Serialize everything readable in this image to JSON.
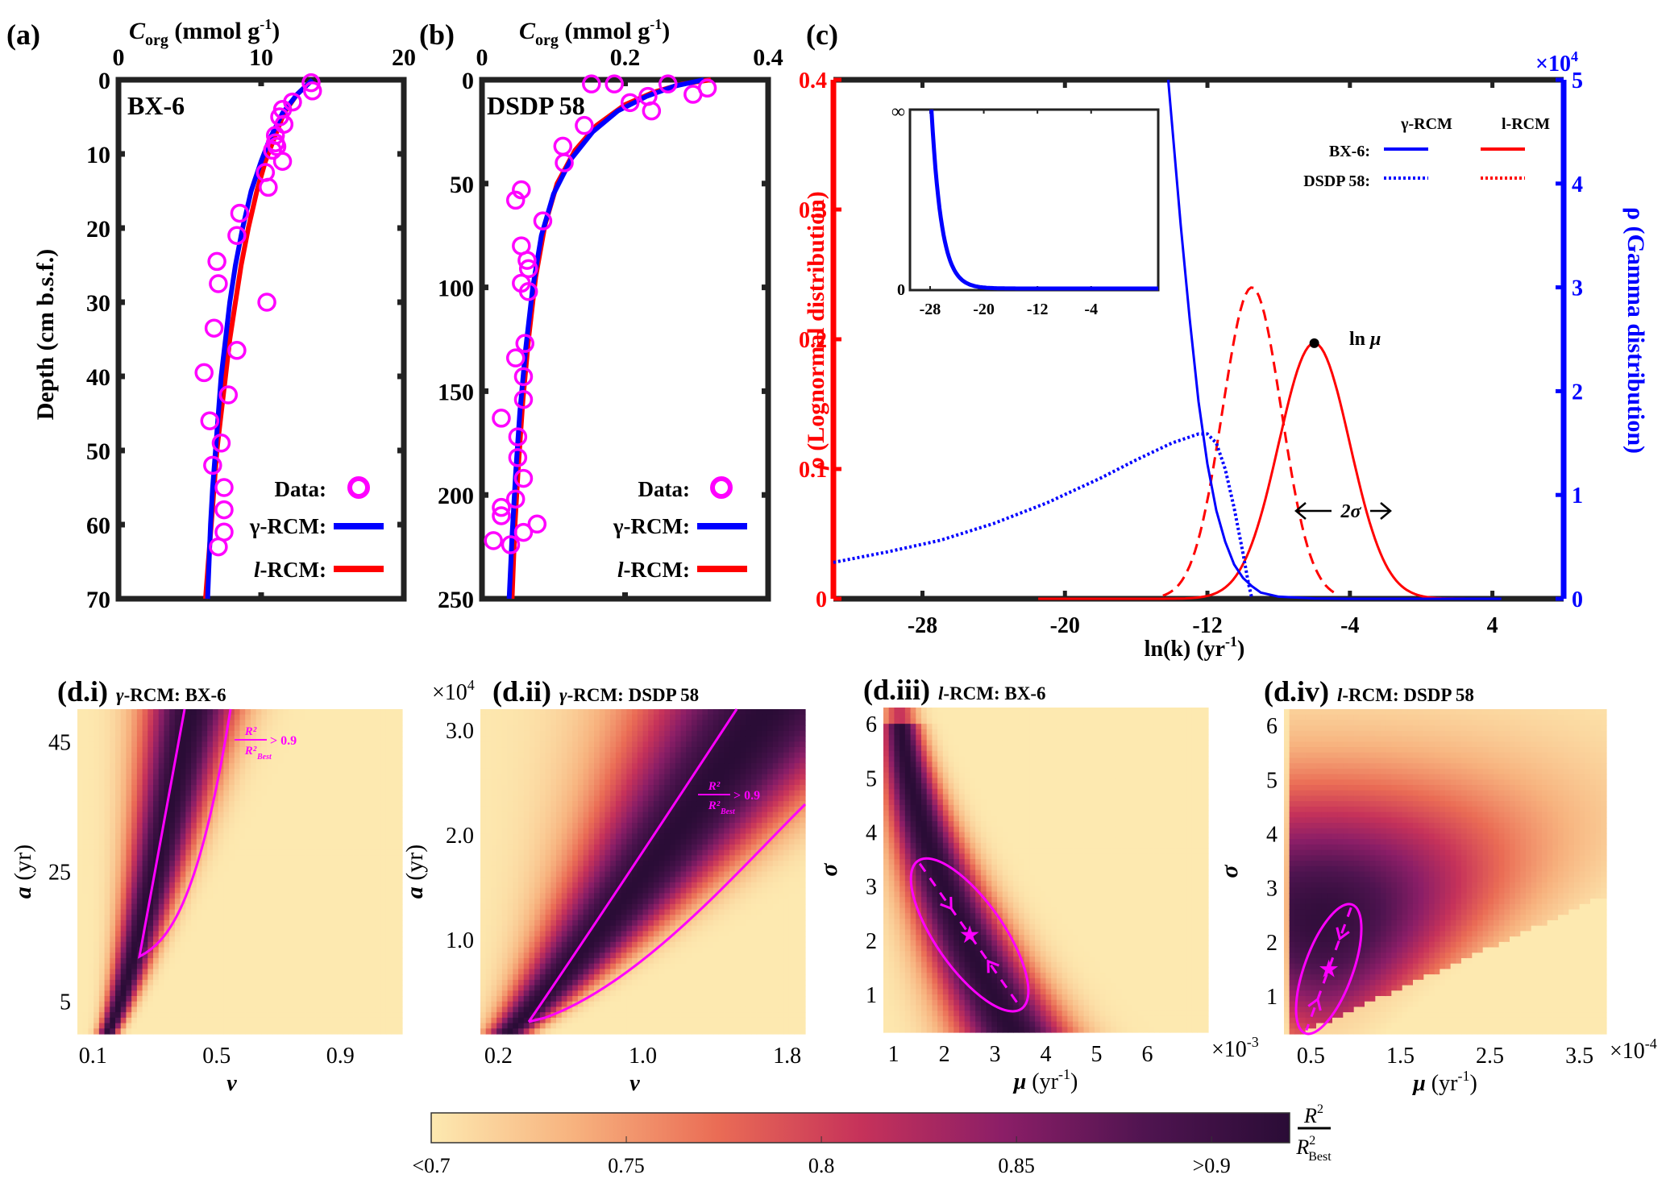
{
  "colors": {
    "data_marker": "#ff00ff",
    "gamma": "#0000ff",
    "lognormal": "#ff0000",
    "axis": "#222222",
    "contour": "#ff00ff",
    "cmap": [
      "#fde9b0",
      "#f7b27e",
      "#ea6c55",
      "#c6325a",
      "#8b1e67",
      "#4f1450",
      "#2a0c36"
    ]
  },
  "chart_data": [
    {
      "id": "a",
      "type": "scatter",
      "panel_label": "(a)",
      "title": "",
      "site_label": "BX-6",
      "xlabel_main": "C",
      "xlabel_sub": "org",
      "xlabel_rest": "  (mmol g",
      "xlabel_sup": "-1",
      "xlabel_close": ")",
      "ylabel": "Depth (cm b.s.f.)",
      "xlim": [
        0,
        20
      ],
      "ylim": [
        0,
        70
      ],
      "y_inverted": true,
      "xticks": [
        0,
        10,
        20
      ],
      "xtick_labels": [
        "0",
        "10",
        "20"
      ],
      "yticks": [
        0,
        10,
        20,
        30,
        40,
        50,
        60,
        70
      ],
      "ytick_labels": [
        "0",
        "10",
        "20",
        "30",
        "40",
        "50",
        "60",
        "70"
      ],
      "legend": {
        "data": "Data:",
        "gamma": "γ-RCM:",
        "log_prefix": "l",
        "log_rest": "-RCM:",
        "position": "bottom-right"
      },
      "data_points": [
        [
          13.5,
          0.4
        ],
        [
          13.6,
          1.5
        ],
        [
          12.2,
          3.0
        ],
        [
          11.5,
          4.0
        ],
        [
          11.3,
          5.0
        ],
        [
          11.6,
          6.0
        ],
        [
          11.0,
          7.5
        ],
        [
          11.0,
          8.5
        ],
        [
          11.1,
          9.0
        ],
        [
          10.8,
          9.5
        ],
        [
          11.5,
          11.0
        ],
        [
          10.3,
          12.5
        ],
        [
          10.5,
          14.5
        ],
        [
          8.5,
          18.0
        ],
        [
          8.3,
          21.0
        ],
        [
          6.9,
          24.5
        ],
        [
          7.0,
          27.5
        ],
        [
          10.4,
          30.0
        ],
        [
          6.7,
          33.5
        ],
        [
          8.3,
          36.5
        ],
        [
          6.0,
          39.5
        ],
        [
          7.7,
          42.5
        ],
        [
          6.4,
          46.0
        ],
        [
          7.2,
          49.0
        ],
        [
          6.6,
          52.0
        ],
        [
          7.4,
          55.0
        ],
        [
          7.4,
          58.0
        ],
        [
          7.4,
          61.0
        ],
        [
          7.0,
          63.0
        ]
      ],
      "gamma_curve": [
        [
          13.6,
          0
        ],
        [
          12.5,
          2
        ],
        [
          11.5,
          4.5
        ],
        [
          10.6,
          8
        ],
        [
          10.0,
          11
        ],
        [
          9.3,
          15
        ],
        [
          8.7,
          20
        ],
        [
          8.2,
          25
        ],
        [
          7.8,
          30
        ],
        [
          7.5,
          35
        ],
        [
          7.2,
          40
        ],
        [
          7.0,
          45
        ],
        [
          6.8,
          50
        ],
        [
          6.6,
          55
        ],
        [
          6.45,
          60
        ],
        [
          6.35,
          65
        ],
        [
          6.25,
          70
        ]
      ],
      "lognormal_curve": [
        [
          13.6,
          0
        ],
        [
          12.5,
          2
        ],
        [
          11.6,
          4.5
        ],
        [
          10.9,
          8
        ],
        [
          10.3,
          11
        ],
        [
          9.7,
          15
        ],
        [
          9.1,
          20
        ],
        [
          8.6,
          25
        ],
        [
          8.2,
          30
        ],
        [
          7.8,
          35
        ],
        [
          7.5,
          40
        ],
        [
          7.2,
          45
        ],
        [
          6.9,
          50
        ],
        [
          6.7,
          55
        ],
        [
          6.5,
          60
        ],
        [
          6.3,
          65
        ],
        [
          6.1,
          70
        ]
      ]
    },
    {
      "id": "b",
      "type": "scatter",
      "panel_label": "(b)",
      "title": "",
      "site_label": "DSDP 58",
      "xlabel_main": "C",
      "xlabel_sub": "org",
      "xlabel_rest": "  (mmol g",
      "xlabel_sup": "-1",
      "xlabel_close": ")",
      "ylabel": "",
      "xlim": [
        0,
        0.4
      ],
      "ylim": [
        0,
        250
      ],
      "y_inverted": true,
      "xticks": [
        0,
        0.2,
        0.4
      ],
      "xtick_labels": [
        "0",
        "0.2",
        "0.4"
      ],
      "yticks": [
        0,
        50,
        100,
        150,
        200,
        250
      ],
      "ytick_labels": [
        "0",
        "50",
        "100",
        "150",
        "200",
        "250"
      ],
      "legend": {
        "data": "Data:",
        "gamma": "γ-RCM:",
        "log_prefix": "l",
        "log_rest": "-RCM:",
        "position": "bottom-right"
      },
      "data_points": [
        [
          0.153,
          2
        ],
        [
          0.185,
          2
        ],
        [
          0.26,
          2
        ],
        [
          0.315,
          4
        ],
        [
          0.295,
          7
        ],
        [
          0.232,
          8
        ],
        [
          0.207,
          11
        ],
        [
          0.237,
          15
        ],
        [
          0.143,
          22
        ],
        [
          0.113,
          32
        ],
        [
          0.115,
          40
        ],
        [
          0.055,
          53
        ],
        [
          0.047,
          58
        ],
        [
          0.085,
          68
        ],
        [
          0.055,
          80
        ],
        [
          0.063,
          87
        ],
        [
          0.065,
          91
        ],
        [
          0.055,
          98
        ],
        [
          0.065,
          102
        ],
        [
          0.06,
          127
        ],
        [
          0.047,
          134
        ],
        [
          0.058,
          143
        ],
        [
          0.058,
          154
        ],
        [
          0.027,
          163
        ],
        [
          0.05,
          172
        ],
        [
          0.05,
          182
        ],
        [
          0.058,
          192
        ],
        [
          0.047,
          202
        ],
        [
          0.027,
          206
        ],
        [
          0.027,
          210
        ],
        [
          0.077,
          214
        ],
        [
          0.058,
          218
        ],
        [
          0.016,
          222
        ],
        [
          0.04,
          224
        ]
      ],
      "gamma_curve": [
        [
          0.31,
          0
        ],
        [
          0.27,
          3
        ],
        [
          0.23,
          8
        ],
        [
          0.19,
          15
        ],
        [
          0.155,
          25
        ],
        [
          0.125,
          38
        ],
        [
          0.1,
          55
        ],
        [
          0.083,
          75
        ],
        [
          0.071,
          100
        ],
        [
          0.061,
          130
        ],
        [
          0.053,
          160
        ],
        [
          0.047,
          190
        ],
        [
          0.042,
          220
        ],
        [
          0.038,
          250
        ]
      ],
      "lognormal_curve": [
        [
          0.32,
          0
        ],
        [
          0.28,
          2
        ],
        [
          0.24,
          6
        ],
        [
          0.2,
          12
        ],
        [
          0.16,
          22
        ],
        [
          0.13,
          34
        ],
        [
          0.105,
          50
        ],
        [
          0.088,
          70
        ],
        [
          0.075,
          95
        ],
        [
          0.065,
          125
        ],
        [
          0.057,
          155
        ],
        [
          0.051,
          185
        ],
        [
          0.046,
          215
        ],
        [
          0.042,
          250
        ]
      ]
    },
    {
      "id": "c",
      "type": "line",
      "panel_label": "(c)",
      "xlabel": "ln(k) (yr",
      "xlabel_sup": "-1",
      "xlabel_close": ")",
      "ylabel_left": "ρ (Lognormal distribution)",
      "ylabel_right": "ρ (Gamma distribution)",
      "right_multiplier": "×10",
      "right_multiplier_exp": "4",
      "xlim": [
        -33,
        8
      ],
      "ylim_left": [
        0,
        0.4
      ],
      "ylim_right": [
        0,
        5
      ],
      "xticks": [
        -28,
        -20,
        -12,
        -4,
        4
      ],
      "xtick_labels": [
        "-28",
        "-20",
        "-12",
        "-4",
        "4"
      ],
      "yticks_left": [
        0,
        0.1,
        0.2,
        0.3,
        0.4
      ],
      "ytick_labels_left": [
        "0",
        "0.1",
        "0.2",
        "0.3",
        "0.4"
      ],
      "yticks_right": [
        0,
        1,
        2,
        3,
        4,
        5
      ],
      "ytick_labels_right": [
        "0",
        "1",
        "2",
        "3",
        "4",
        "5"
      ],
      "legend": {
        "col_gamma": "γ-RCM",
        "col_log": "l-RCM",
        "row_bx6": "BX-6:",
        "row_dsdp": "DSDP 58:",
        "position": "top-right"
      },
      "annotations": {
        "ln_mu": "ln μ",
        "two_sigma": "2σ",
        "ln_mu_point": [
          -6,
          0.197
        ]
      },
      "series": [
        {
          "name": "BX-6 l-RCM",
          "axis": "left",
          "style": "solid",
          "color": "#ff0000",
          "mu_ln": -6,
          "sigma": 2.0,
          "peak": 0.197,
          "x_range": [
            -21.5,
            4
          ]
        },
        {
          "name": "DSDP 58 l-RCM",
          "axis": "left",
          "style": "dashed",
          "color": "#ff0000",
          "mu_ln": -9.5,
          "sigma": 1.65,
          "peak": 0.24,
          "x_range": [
            -14.5,
            -4.5
          ]
        },
        {
          "name": "BX-6 γ-RCM",
          "axis": "right",
          "style": "solid",
          "color": "#0000ff",
          "points": [
            [
              -14.2,
              5.0
            ],
            [
              -13.5,
              3.6
            ],
            [
              -13,
              2.7
            ],
            [
              -12.5,
              1.9
            ],
            [
              -12,
              1.3
            ],
            [
              -11.5,
              0.85
            ],
            [
              -11,
              0.55
            ],
            [
              -10.5,
              0.33
            ],
            [
              -10,
              0.2
            ],
            [
              -9.5,
              0.12
            ],
            [
              -9,
              0.06
            ],
            [
              -8,
              0.02
            ],
            [
              -6,
              0.003
            ],
            [
              -4,
              0
            ],
            [
              4.5,
              0
            ]
          ]
        },
        {
          "name": "DSDP 58 γ-RCM",
          "axis": "left",
          "style": "dotted",
          "color": "#0000ff",
          "points": [
            [
              -33,
              0.028
            ],
            [
              -30,
              0.036
            ],
            [
              -27,
              0.045
            ],
            [
              -24,
              0.058
            ],
            [
              -21,
              0.074
            ],
            [
              -18,
              0.093
            ],
            [
              -16,
              0.107
            ],
            [
              -14,
              0.12
            ],
            [
              -12.5,
              0.127
            ],
            [
              -12,
              0.127
            ],
            [
              -11.5,
              0.12
            ],
            [
              -11,
              0.1
            ],
            [
              -10.5,
              0.07
            ],
            [
              -10,
              0.035
            ],
            [
              -9.7,
              0.012
            ],
            [
              -9.5,
              0.0
            ]
          ]
        }
      ],
      "inset": {
        "xticks": [
          -28,
          -20,
          -12,
          -4
        ],
        "xtick_labels": [
          "-28",
          "-20",
          "-12",
          "-4"
        ],
        "ytick_top": "∞",
        "ytick_bottom": "0",
        "xlim": [
          -31,
          6
        ]
      }
    },
    {
      "id": "d.i",
      "type": "heatmap",
      "panel_label": "(d.i)",
      "title_prefix": "γ",
      "title_rest": "-RCM: BX-6",
      "xlabel": "v",
      "ylabel_var": "a",
      "ylabel_unit": " (yr)",
      "x_multiplier": "",
      "y_multiplier": "",
      "xlim": [
        0.05,
        1.1
      ],
      "ylim": [
        0,
        50
      ],
      "xticks": [
        0.1,
        0.5,
        0.9
      ],
      "xtick_labels": [
        "0.1",
        "0.5",
        "0.9"
      ],
      "yticks": [
        5,
        25,
        45
      ],
      "ytick_labels": [
        "5",
        "25",
        "45"
      ],
      "contour_label": {
        "num": "R",
        "num_sup": "2",
        "den": "R",
        "den_sup": "2",
        "den_sub": "Best",
        "rest": "> 0.9"
      }
    },
    {
      "id": "d.ii",
      "type": "heatmap",
      "panel_label": "(d.ii)",
      "title_prefix": "γ",
      "title_rest": "-RCM: DSDP 58",
      "xlabel": "v",
      "ylabel_var": "a",
      "ylabel_unit": " (yr)",
      "y_multiplier": "×10",
      "y_multiplier_exp": "4",
      "xlim": [
        0.1,
        1.9
      ],
      "ylim": [
        0.1,
        3.2
      ],
      "xticks": [
        0.2,
        1.0,
        1.8
      ],
      "xtick_labels": [
        "0.2",
        "1.0",
        "1.8"
      ],
      "yticks": [
        1.0,
        2.0,
        3.0
      ],
      "ytick_labels": [
        "1.0",
        "2.0",
        "3.0"
      ],
      "contour_label": {
        "num": "R",
        "num_sup": "2",
        "den": "R",
        "den_sup": "2",
        "den_sub": "Best",
        "rest": "> 0.9"
      }
    },
    {
      "id": "d.iii",
      "type": "heatmap",
      "panel_label": "(d.iii)",
      "title_prefix": "l",
      "title_rest": "-RCM: BX-6",
      "xlabel": "μ",
      "xlabel_unit": " (yr",
      "xlabel_sup": "-1",
      "xlabel_close": ")",
      "ylabel_var": "σ",
      "x_multiplier": "×10",
      "x_multiplier_exp": "-3",
      "xlim": [
        0.8,
        7.2
      ],
      "ylim": [
        0.3,
        6.3
      ],
      "xticks": [
        1,
        2,
        3,
        4,
        5,
        6
      ],
      "xtick_labels": [
        "1",
        "2",
        "3",
        "4",
        "5",
        "6"
      ],
      "yticks": [
        1,
        2,
        3,
        4,
        5,
        6
      ],
      "ytick_labels": [
        "1",
        "2",
        "3",
        "4",
        "5",
        "6"
      ],
      "best_fit": [
        2.5,
        2.1
      ]
    },
    {
      "id": "d.iv",
      "type": "heatmap",
      "panel_label": "(d.iv)",
      "title_prefix": "l",
      "title_rest": "-RCM: DSDP 58",
      "xlabel": "μ",
      "xlabel_unit": " (yr",
      "xlabel_sup": "-1",
      "xlabel_close": ")",
      "ylabel_var": "σ",
      "x_multiplier": "×10",
      "x_multiplier_exp": "-4",
      "xlim": [
        0.2,
        3.8
      ],
      "ylim": [
        0.3,
        6.3
      ],
      "xticks": [
        0.5,
        1.5,
        2.5,
        3.5
      ],
      "xtick_labels": [
        "0.5",
        "1.5",
        "2.5",
        "3.5"
      ],
      "yticks": [
        1,
        2,
        3,
        4,
        5,
        6
      ],
      "ytick_labels": [
        "1",
        "2",
        "3",
        "4",
        "5",
        "6"
      ],
      "best_fit": [
        0.7,
        1.5
      ]
    },
    {
      "id": "colorbar",
      "type": "heatmap",
      "ticks": [
        0.7,
        0.75,
        0.8,
        0.85,
        0.9
      ],
      "tick_labels": [
        "<0.7",
        "0.75",
        "0.8",
        "0.85",
        ">0.9"
      ],
      "range": [
        0.7,
        0.92
      ],
      "label_num": "R",
      "label_num_sup": "2",
      "label_den": "R",
      "label_den_sup": "2",
      "label_den_sub": "Best"
    }
  ]
}
